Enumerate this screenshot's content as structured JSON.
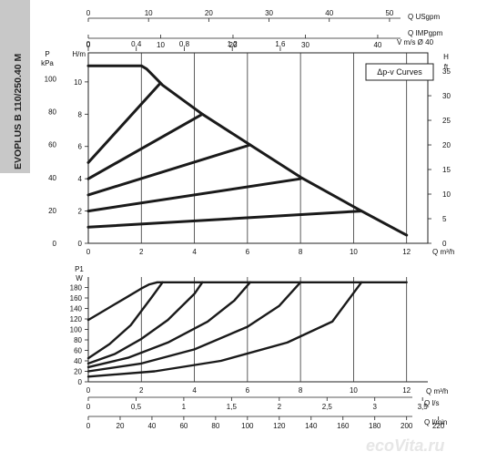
{
  "sidebar": {
    "model_label": "EVOPLUS B 110/250.40 M",
    "color": "#c8c8c8"
  },
  "legend": {
    "label": "Δp-v Curves"
  },
  "watermark": {
    "text": "ecoVita.ru"
  },
  "chart_data": [
    {
      "type": "line",
      "name": "head-curves",
      "x_unit": "Q m³/h",
      "xlim": [
        0,
        12.8
      ],
      "x_ticks": [
        0,
        2,
        4,
        6,
        8,
        10,
        12
      ],
      "y_left_unit_top": "P",
      "y_left_unit": "kPa",
      "y_left_ticks": [
        0,
        20,
        40,
        60,
        80,
        100
      ],
      "y_main_unit": "H/m",
      "ylim": [
        0,
        11.8
      ],
      "y_main_ticks": [
        0,
        2,
        4,
        6,
        8,
        10
      ],
      "y_right_unit_top": "H",
      "y_right_unit": "ft",
      "y_right_ticks": [
        0,
        5,
        10,
        15,
        20,
        25,
        30,
        35
      ],
      "top_axes": [
        {
          "unit": "Q USgpm",
          "ticks": [
            0,
            10,
            20,
            30,
            40,
            50
          ]
        },
        {
          "unit": "Q IMPgpm",
          "ticks": [
            0,
            10,
            20,
            30,
            40
          ]
        },
        {
          "unit": "V m/s Ø 40",
          "ticks": [
            "0",
            "0,4",
            "0,8",
            "1,2",
            "1,6"
          ]
        }
      ],
      "series": [
        {
          "x": [
            0,
            2.0,
            2.2,
            2.5,
            2.8,
            4.3,
            6.1,
            8.0,
            10.3,
            12.0
          ],
          "y": [
            11.0,
            11.0,
            10.8,
            10.3,
            9.8,
            8.0,
            6.1,
            4.1,
            2.0,
            0.5
          ]
        },
        {
          "x": [
            0,
            2.7
          ],
          "y": [
            5.0,
            9.9
          ]
        },
        {
          "x": [
            0,
            4.3
          ],
          "y": [
            4.0,
            8.0
          ]
        },
        {
          "x": [
            0,
            6.1
          ],
          "y": [
            3.0,
            6.1
          ]
        },
        {
          "x": [
            0,
            8.0
          ],
          "y": [
            2.0,
            4.0
          ]
        },
        {
          "x": [
            0,
            10.3
          ],
          "y": [
            1.0,
            2.0
          ]
        }
      ]
    },
    {
      "type": "line",
      "name": "power-curves",
      "x_unit": "Q m³/h",
      "xlim": [
        0,
        12.8
      ],
      "x_ticks": [
        0,
        2,
        4,
        6,
        8,
        10,
        12
      ],
      "y_unit_top": "P1",
      "y_unit": "W",
      "ylim": [
        0,
        200
      ],
      "y_ticks": [
        0,
        20,
        40,
        60,
        80,
        100,
        120,
        140,
        160,
        180
      ],
      "bottom_axes": [
        {
          "unit": "Q l/s",
          "ticks": [
            "0",
            "0,5",
            "1",
            "1,5",
            "2",
            "2,5",
            "3",
            "3,5"
          ]
        },
        {
          "unit": "Q l/min",
          "ticks": [
            "0",
            "20",
            "40",
            "60",
            "80",
            "100",
            "120",
            "140",
            "160",
            "180",
            "200",
            "220"
          ]
        }
      ],
      "series": [
        {
          "x": [
            0,
            0.5,
            1.0,
            1.5,
            2.0,
            2.3,
            2.6,
            3.0,
            12.0
          ],
          "y": [
            118,
            133,
            148,
            163,
            178,
            186,
            190,
            190,
            190
          ]
        },
        {
          "x": [
            0,
            0.8,
            1.6,
            2.4,
            2.8
          ],
          "y": [
            45,
            72,
            108,
            162,
            190
          ]
        },
        {
          "x": [
            0,
            1.0,
            2.0,
            3.0,
            4.0,
            4.3
          ],
          "y": [
            35,
            53,
            82,
            118,
            168,
            190
          ]
        },
        {
          "x": [
            0,
            1.5,
            3.0,
            4.5,
            5.5,
            6.1
          ],
          "y": [
            28,
            46,
            75,
            115,
            155,
            190
          ]
        },
        {
          "x": [
            0,
            2.0,
            4.0,
            6.0,
            7.2,
            8.0
          ],
          "y": [
            20,
            35,
            62,
            105,
            145,
            190
          ]
        },
        {
          "x": [
            0,
            2.5,
            5.0,
            7.5,
            9.2,
            10.3
          ],
          "y": [
            10,
            20,
            40,
            75,
            115,
            190
          ]
        }
      ]
    }
  ]
}
